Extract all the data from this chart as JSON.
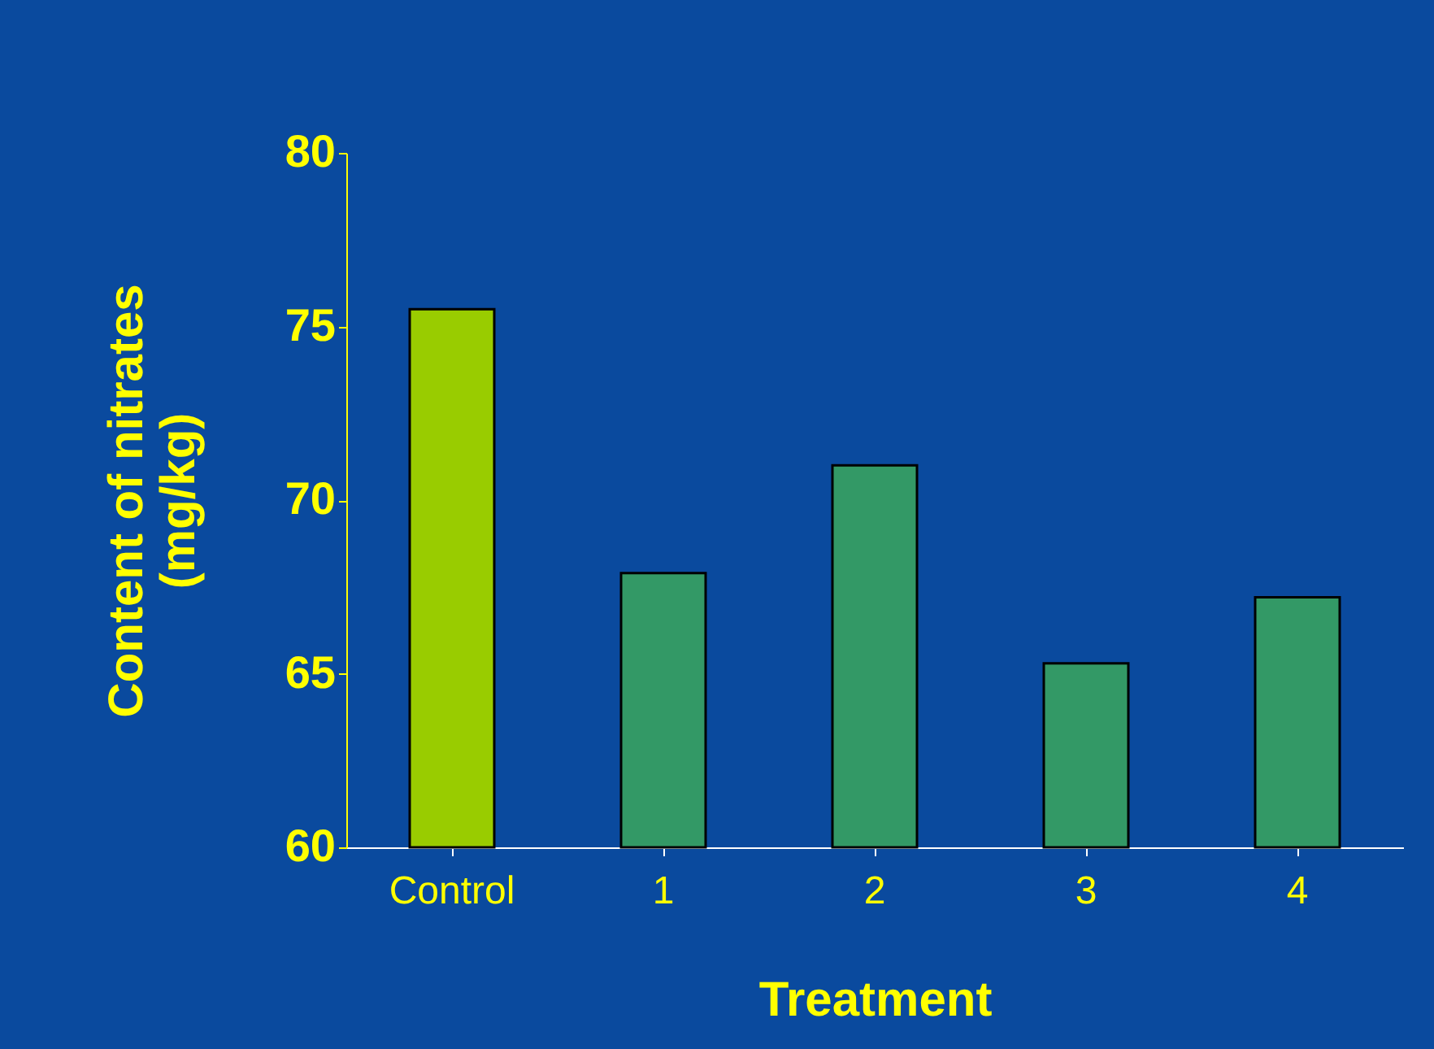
{
  "chart_data": {
    "type": "bar",
    "xlabel": "Treatment",
    "ylabel": "Content of nitrates\n(mg/kg)",
    "categories": [
      "Control",
      "1",
      "2",
      "3",
      "4"
    ],
    "values": [
      75.5,
      67.9,
      71.0,
      65.3,
      67.2
    ],
    "colors": [
      "#99cc00",
      "#339966",
      "#339966",
      "#339966",
      "#339966"
    ],
    "ylim": [
      60,
      80
    ],
    "yticks": [
      60,
      65,
      70,
      75,
      80
    ],
    "grid": false,
    "legend": false
  }
}
